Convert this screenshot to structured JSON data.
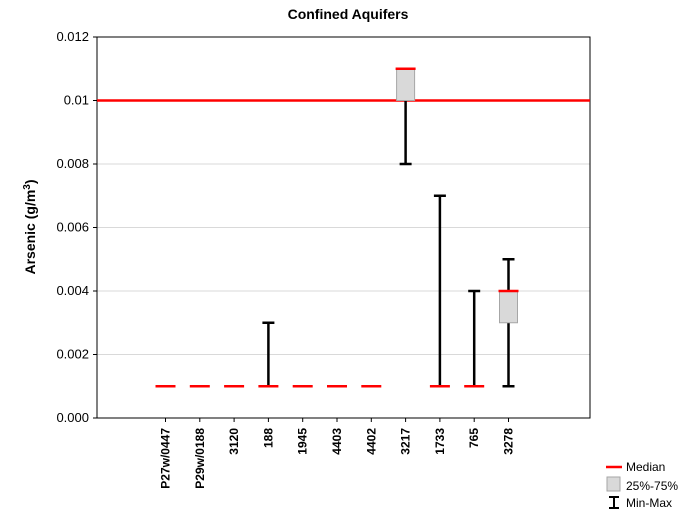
{
  "chart_data": {
    "type": "boxplot",
    "title": "Confined Aquifers",
    "ylabel_main": "Arsenic (g/m",
    "ylabel_sup": "3",
    "ylabel_end": ")",
    "xlabel": "",
    "ylim": [
      0,
      0.012
    ],
    "yticks": [
      0,
      0.002,
      0.004,
      0.006,
      0.008,
      0.01,
      0.012
    ],
    "ytick_labels": [
      "0.000",
      "0.002",
      "0.004",
      "0.006",
      "0.008",
      "0.01",
      "0.012"
    ],
    "grid": true,
    "reference_line": 0.01,
    "legend_position": "bottom-right",
    "legend": [
      "Median",
      "25%-75%",
      "Min-Max"
    ],
    "categories": [
      "P27w/0447",
      "P29w/0188",
      "3120",
      "188",
      "1945",
      "4403",
      "4402",
      "3217",
      "1733",
      "765",
      "3278"
    ],
    "boxes": [
      {
        "min": 0.001,
        "q1": 0.001,
        "median": 0.001,
        "q3": 0.001,
        "max": 0.001
      },
      {
        "min": 0.001,
        "q1": 0.001,
        "median": 0.001,
        "q3": 0.001,
        "max": 0.001
      },
      {
        "min": 0.001,
        "q1": 0.001,
        "median": 0.001,
        "q3": 0.001,
        "max": 0.001
      },
      {
        "min": 0.001,
        "q1": 0.001,
        "median": 0.001,
        "q3": 0.001,
        "max": 0.003
      },
      {
        "min": 0.001,
        "q1": 0.001,
        "median": 0.001,
        "q3": 0.001,
        "max": 0.001
      },
      {
        "min": 0.001,
        "q1": 0.001,
        "median": 0.001,
        "q3": 0.001,
        "max": 0.001
      },
      {
        "min": 0.001,
        "q1": 0.001,
        "median": 0.001,
        "q3": 0.001,
        "max": 0.001
      },
      {
        "min": 0.008,
        "q1": 0.01,
        "median": 0.011,
        "q3": 0.011,
        "max": 0.011
      },
      {
        "min": 0.001,
        "q1": 0.001,
        "median": 0.001,
        "q3": 0.001,
        "max": 0.007
      },
      {
        "min": 0.001,
        "q1": 0.001,
        "median": 0.001,
        "q3": 0.001,
        "max": 0.004
      },
      {
        "min": 0.001,
        "q1": 0.003,
        "median": 0.004,
        "q3": 0.004,
        "max": 0.005
      }
    ],
    "colors": {
      "median": "#ff0000",
      "reference": "#ff0000",
      "box_fill": "#d9d9d9",
      "box_stroke": "#a6a6a6",
      "whisker": "#000000",
      "grid": "#d9d9d9"
    }
  }
}
